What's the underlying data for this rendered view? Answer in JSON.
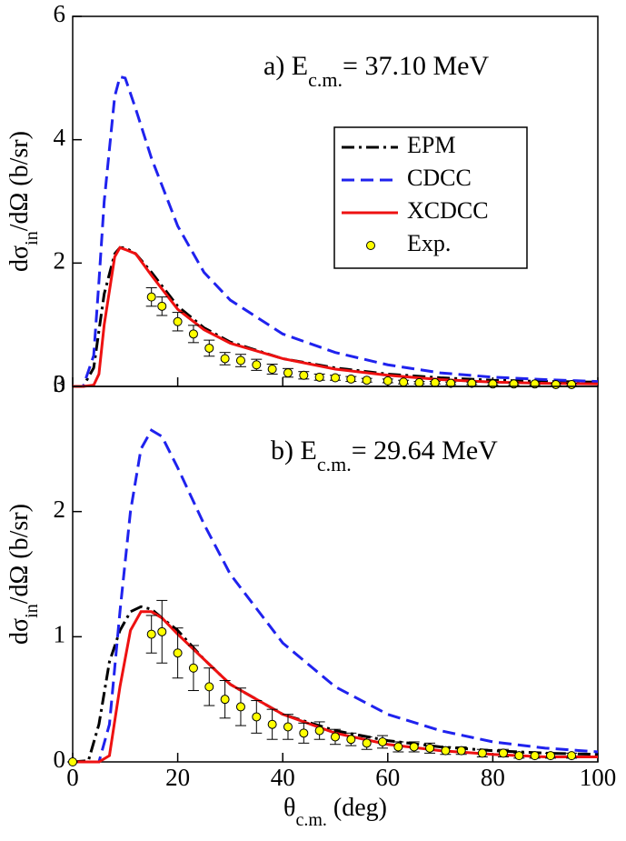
{
  "chart_data": [
    {
      "type": "line",
      "title": "a) E",
      "title_sub": "c.m.",
      "title_tail": "= 37.10 MeV",
      "y_label": "dσ",
      "y_label_sub": "in",
      "y_label_tail": "/dΩ (b/sr)",
      "x": [
        0,
        2,
        4,
        5,
        6,
        8,
        9,
        10,
        12,
        15,
        20,
        25,
        30,
        40,
        50,
        60,
        70,
        80,
        90,
        100
      ],
      "series": [
        {
          "name": "EPM",
          "color": "#000000",
          "dash": "dashdot",
          "values": [
            0,
            0,
            0.3,
            0.9,
            1.5,
            2.15,
            2.25,
            2.25,
            2.15,
            1.85,
            1.3,
            0.95,
            0.72,
            0.45,
            0.3,
            0.2,
            0.14,
            0.1,
            0.08,
            0.07
          ]
        },
        {
          "name": "CDCC",
          "color": "#1f22ee",
          "dash": "dashed",
          "values": [
            0,
            0,
            0.5,
            1.7,
            3.0,
            4.7,
            5.02,
            5.0,
            4.5,
            3.7,
            2.6,
            1.85,
            1.4,
            0.85,
            0.55,
            0.35,
            0.22,
            0.15,
            0.11,
            0.08
          ]
        },
        {
          "name": "XCDCC",
          "color": "#ee1111",
          "dash": "solid",
          "values": [
            0,
            0,
            0.02,
            0.2,
            1.0,
            2.1,
            2.25,
            2.22,
            2.15,
            1.8,
            1.25,
            0.92,
            0.7,
            0.45,
            0.28,
            0.18,
            0.11,
            0.07,
            0.05,
            0.04
          ]
        }
      ],
      "points": {
        "name": "Exp.",
        "color": "#ffff00",
        "x": [
          15,
          17,
          20,
          23,
          26,
          29,
          32,
          35,
          38,
          41,
          44,
          47,
          50,
          53,
          56,
          60,
          63,
          66,
          69,
          72,
          76,
          80,
          84,
          88,
          92,
          95
        ],
        "values": [
          1.45,
          1.3,
          1.05,
          0.85,
          0.62,
          0.45,
          0.42,
          0.35,
          0.28,
          0.22,
          0.18,
          0.15,
          0.14,
          0.12,
          0.1,
          0.09,
          0.07,
          0.06,
          0.06,
          0.05,
          0.05,
          0.04,
          0.04,
          0.04,
          0.03,
          0.03
        ],
        "errors": [
          0.15,
          0.15,
          0.15,
          0.14,
          0.13,
          0.1,
          0.1,
          0.09,
          0.08,
          0.07,
          0.06,
          0.05,
          0.04,
          0.04,
          0.03,
          0.03,
          0.03,
          0.02,
          0.02,
          0.02,
          0.02,
          0.02,
          0.02,
          0.02,
          0.02,
          0.02
        ]
      },
      "xlim": [
        0,
        100
      ],
      "ylim": [
        0,
        6
      ],
      "xticks": [
        0,
        20,
        40,
        60,
        80,
        100
      ],
      "yticks": [
        0,
        2,
        4,
        6
      ],
      "xtick_labels": false,
      "legend": "right"
    },
    {
      "type": "line",
      "title": "b) E",
      "title_sub": "c.m.",
      "title_tail": "= 29.64 MeV",
      "y_label": "dσ",
      "y_label_sub": "in",
      "y_label_tail": "/dΩ (b/sr)",
      "x_label": "θ",
      "x_label_sub": "c.m.",
      "x_label_tail": " (deg)",
      "x": [
        0,
        3,
        5,
        7,
        9,
        11,
        13,
        15,
        17,
        20,
        25,
        30,
        40,
        50,
        60,
        70,
        80,
        90,
        100
      ],
      "series": [
        {
          "color": "#000000",
          "dash": "dashdot",
          "values": [
            0,
            0.01,
            0.3,
            0.8,
            1.05,
            1.2,
            1.24,
            1.22,
            1.15,
            1.05,
            0.82,
            0.62,
            0.38,
            0.25,
            0.17,
            0.12,
            0.09,
            0.07,
            0.06
          ]
        },
        {
          "color": "#1f22ee",
          "dash": "dashed",
          "values": [
            0,
            0,
            0,
            0.3,
            1.2,
            2.0,
            2.5,
            2.65,
            2.6,
            2.35,
            1.9,
            1.5,
            0.95,
            0.6,
            0.38,
            0.25,
            0.16,
            0.11,
            0.08
          ]
        },
        {
          "color": "#ee1111",
          "dash": "solid",
          "values": [
            0,
            0,
            0,
            0.05,
            0.6,
            1.05,
            1.2,
            1.2,
            1.15,
            1.02,
            0.82,
            0.62,
            0.38,
            0.23,
            0.14,
            0.09,
            0.06,
            0.04,
            0.04
          ]
        }
      ],
      "points": {
        "color": "#ffff00",
        "x": [
          0,
          15,
          17,
          20,
          23,
          26,
          29,
          32,
          35,
          38,
          41,
          44,
          47,
          50,
          53,
          56,
          59,
          62,
          65,
          68,
          71,
          74,
          78,
          82,
          85,
          88,
          91,
          95
        ],
        "values": [
          0,
          1.02,
          1.04,
          0.87,
          0.75,
          0.6,
          0.5,
          0.44,
          0.36,
          0.3,
          0.28,
          0.23,
          0.25,
          0.2,
          0.18,
          0.15,
          0.16,
          0.12,
          0.12,
          0.11,
          0.09,
          0.09,
          0.07,
          0.07,
          0.05,
          0.05,
          0.05,
          0.05
        ],
        "errors": [
          0,
          0.15,
          0.25,
          0.2,
          0.18,
          0.15,
          0.15,
          0.15,
          0.13,
          0.12,
          0.1,
          0.08,
          0.07,
          0.06,
          0.05,
          0.05,
          0.05,
          0.04,
          0.04,
          0.04,
          0.03,
          0.03,
          0.03,
          0.03,
          0.02,
          0.02,
          0.02,
          0.02
        ]
      },
      "xlim": [
        0,
        100
      ],
      "ylim": [
        0,
        3
      ],
      "xticks": [
        0,
        20,
        40,
        60,
        80,
        100
      ],
      "yticks": [
        0,
        1,
        2,
        3
      ],
      "xtick_labels": true
    }
  ]
}
